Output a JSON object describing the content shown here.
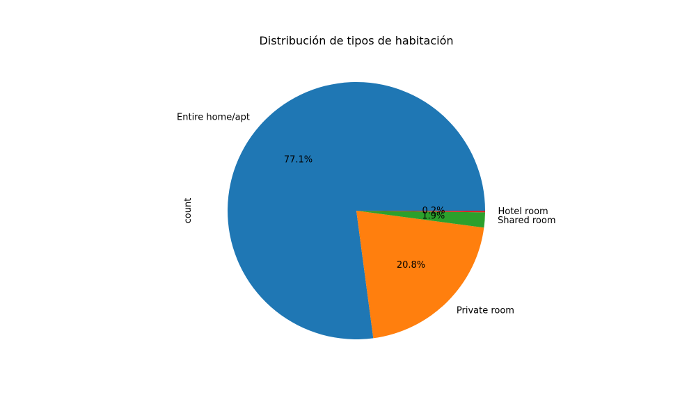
{
  "chart_data": {
    "type": "pie",
    "title": "Distribución de tipos de habitación",
    "ylabel": "count",
    "xlabel": "",
    "start_angle_deg": 0,
    "direction": "counterclockwise",
    "slices": [
      {
        "label": "Entire home/apt",
        "value": 77.1,
        "pct_label": "77.1%",
        "color": "#1f77b4"
      },
      {
        "label": "Private room",
        "value": 20.8,
        "pct_label": "20.8%",
        "color": "#ff7f0e"
      },
      {
        "label": "Shared room",
        "value": 1.9,
        "pct_label": "1.9%",
        "color": "#2ca02c"
      },
      {
        "label": "Hotel room",
        "value": 0.2,
        "pct_label": "0.2%",
        "color": "#d62728"
      }
    ]
  }
}
